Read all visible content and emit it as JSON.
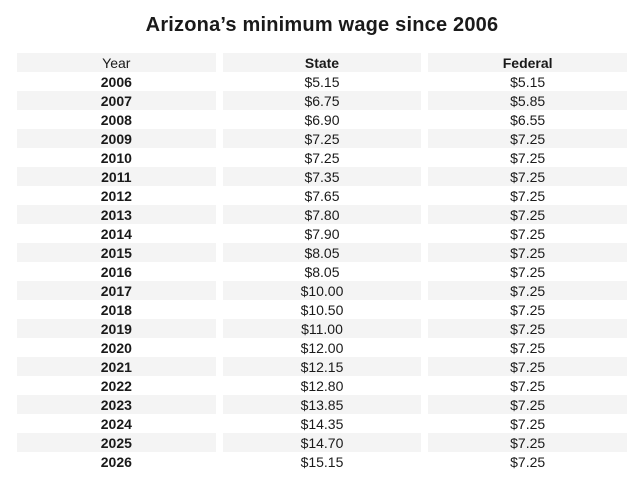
{
  "title": "Arizona’s minimum wage since 2006",
  "colors": {
    "stripe": "#f4f4f4",
    "text": "#1a1a1a",
    "background": "#ffffff"
  },
  "table": {
    "columns": [
      {
        "label": "Year"
      },
      {
        "label": "State"
      },
      {
        "label": "Federal"
      }
    ],
    "rows": [
      {
        "year": "2006",
        "state": "$5.15",
        "federal": "$5.15"
      },
      {
        "year": "2007",
        "state": "$6.75",
        "federal": "$5.85"
      },
      {
        "year": "2008",
        "state": "$6.90",
        "federal": "$6.55"
      },
      {
        "year": "2009",
        "state": "$7.25",
        "federal": "$7.25"
      },
      {
        "year": "2010",
        "state": "$7.25",
        "federal": "$7.25"
      },
      {
        "year": "2011",
        "state": "$7.35",
        "federal": "$7.25"
      },
      {
        "year": "2012",
        "state": "$7.65",
        "federal": "$7.25"
      },
      {
        "year": "2013",
        "state": "$7.80",
        "federal": "$7.25"
      },
      {
        "year": "2014",
        "state": "$7.90",
        "federal": "$7.25"
      },
      {
        "year": "2015",
        "state": "$8.05",
        "federal": "$7.25"
      },
      {
        "year": "2016",
        "state": "$8.05",
        "federal": "$7.25"
      },
      {
        "year": "2017",
        "state": "$10.00",
        "federal": "$7.25"
      },
      {
        "year": "2018",
        "state": "$10.50",
        "federal": "$7.25"
      },
      {
        "year": "2019",
        "state": "$11.00",
        "federal": "$7.25"
      },
      {
        "year": "2020",
        "state": "$12.00",
        "federal": "$7.25"
      },
      {
        "year": "2021",
        "state": "$12.15",
        "federal": "$7.25"
      },
      {
        "year": "2022",
        "state": "$12.80",
        "federal": "$7.25"
      },
      {
        "year": "2023",
        "state": "$13.85",
        "federal": "$7.25"
      },
      {
        "year": "2024",
        "state": "$14.35",
        "federal": "$7.25"
      },
      {
        "year": "2025",
        "state": "$14.70",
        "federal": "$7.25"
      },
      {
        "year": "2026",
        "state": "$15.15",
        "federal": "$7.25"
      }
    ]
  },
  "chart_data": {
    "type": "table",
    "title": "Arizona’s minimum wage since 2006",
    "columns": [
      "Year",
      "State",
      "Federal"
    ],
    "years": [
      2006,
      2007,
      2008,
      2009,
      2010,
      2011,
      2012,
      2013,
      2014,
      2015,
      2016,
      2017,
      2018,
      2019,
      2020,
      2021,
      2022,
      2023,
      2024,
      2025,
      2026
    ],
    "series": [
      {
        "name": "State",
        "values": [
          5.15,
          6.75,
          6.9,
          7.25,
          7.25,
          7.35,
          7.65,
          7.8,
          7.9,
          8.05,
          8.05,
          10.0,
          10.5,
          11.0,
          12.0,
          12.15,
          12.8,
          13.85,
          14.35,
          14.7,
          15.15
        ]
      },
      {
        "name": "Federal",
        "values": [
          5.15,
          5.85,
          6.55,
          7.25,
          7.25,
          7.25,
          7.25,
          7.25,
          7.25,
          7.25,
          7.25,
          7.25,
          7.25,
          7.25,
          7.25,
          7.25,
          7.25,
          7.25,
          7.25,
          7.25,
          7.25
        ]
      }
    ],
    "layout_hints": {
      "striped_rows": true,
      "all_cells_centered": true,
      "header_background": "#f4f4f4"
    }
  }
}
